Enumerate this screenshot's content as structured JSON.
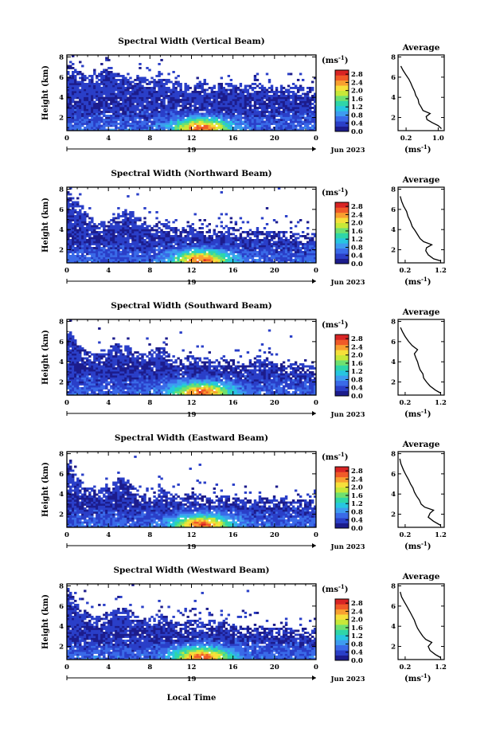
{
  "figure": {
    "x_axis_label": "Local Time",
    "day_label": "19",
    "date_label": "Jun 2023",
    "y_axis_label": "Height (km)",
    "colorbar_unit": "(ms",
    "colorbar_unit_exp": "-1",
    "colorbar_unit_close": ")",
    "avg_title": "Average",
    "avg_unit": "(ms",
    "avg_unit_exp": "-1",
    "avg_unit_close": ")",
    "colorbar_ticks": [
      "0.0",
      "0.4",
      "0.8",
      "1.2",
      "1.6",
      "2.0",
      "2.4",
      "2.8"
    ],
    "colorbar_range": [
      0,
      3.0
    ],
    "colormap": [
      "#1c1c8c",
      "#2a3fc8",
      "#3a6ae8",
      "#3e9cf0",
      "#27c6e0",
      "#2fd6a8",
      "#6fe070",
      "#c8e838",
      "#f6e03a",
      "#f8a030",
      "#f05a28",
      "#d82424"
    ]
  },
  "chart_data": [
    {
      "type": "heatmap",
      "title": "Spectral Width (Vertical Beam)",
      "beam": "vertical",
      "x_ticks": [
        "0",
        "4",
        "8",
        "12",
        "16",
        "20",
        "0"
      ],
      "xlim": [
        0,
        24
      ],
      "y_ticks": [
        "2",
        "4",
        "6",
        "8"
      ],
      "ylim": [
        0.7,
        8.2
      ],
      "seed": 11,
      "top_profile": [
        7.0,
        6.4,
        5.8,
        6.2,
        6.9,
        6.1,
        5.6,
        5.9,
        5.5,
        6.2,
        5.4,
        5.2,
        5.0,
        5.3,
        4.9,
        5.2,
        5.0,
        4.8,
        5.1,
        5.0,
        4.8,
        4.9,
        4.8,
        4.7,
        4.8
      ],
      "average": {
        "type": "line",
        "title": "Average",
        "x_ticks": [
          "0.2",
          "1.0"
        ],
        "xlim": [
          0.0,
          1.15
        ],
        "y_ticks": [
          "2",
          "4",
          "6",
          "8"
        ],
        "ylim": [
          0.7,
          8.2
        ],
        "profile": [
          [
            1.08,
            0.9
          ],
          [
            1.0,
            1.2
          ],
          [
            0.85,
            1.5
          ],
          [
            0.72,
            1.8
          ],
          [
            0.7,
            2.1
          ],
          [
            0.8,
            2.4
          ],
          [
            0.62,
            2.7
          ],
          [
            0.58,
            3.0
          ],
          [
            0.52,
            3.4
          ],
          [
            0.5,
            3.8
          ],
          [
            0.44,
            4.2
          ],
          [
            0.41,
            4.6
          ],
          [
            0.36,
            5.0
          ],
          [
            0.32,
            5.4
          ],
          [
            0.27,
            5.8
          ],
          [
            0.2,
            6.2
          ],
          [
            0.12,
            6.7
          ],
          [
            0.07,
            7.1
          ]
        ]
      }
    },
    {
      "type": "heatmap",
      "title": "Spectral Width (Northward Beam)",
      "beam": "northward",
      "x_ticks": [
        "0",
        "4",
        "8",
        "12",
        "16",
        "20",
        "0"
      ],
      "xlim": [
        0,
        24
      ],
      "y_ticks": [
        "2",
        "4",
        "6",
        "8"
      ],
      "ylim": [
        0.7,
        8.2
      ],
      "seed": 23,
      "top_profile": [
        7.6,
        6.5,
        5.2,
        4.4,
        4.6,
        5.4,
        5.8,
        4.8,
        4.2,
        4.5,
        4.0,
        3.8,
        4.3,
        4.0,
        3.6,
        4.2,
        3.9,
        3.5,
        3.7,
        3.6,
        3.5,
        3.6,
        3.4,
        3.5,
        3.4
      ],
      "average": {
        "type": "line",
        "title": "Average",
        "x_ticks": [
          "0.2",
          "1.2"
        ],
        "xlim": [
          0.0,
          1.3
        ],
        "y_ticks": [
          "2",
          "4",
          "6",
          "8"
        ],
        "ylim": [
          0.7,
          8.2
        ],
        "profile": [
          [
            1.2,
            0.9
          ],
          [
            1.0,
            1.1
          ],
          [
            0.85,
            1.5
          ],
          [
            0.78,
            1.9
          ],
          [
            0.8,
            2.2
          ],
          [
            0.95,
            2.5
          ],
          [
            0.72,
            2.8
          ],
          [
            0.62,
            3.1
          ],
          [
            0.55,
            3.5
          ],
          [
            0.48,
            3.9
          ],
          [
            0.4,
            4.3
          ],
          [
            0.35,
            4.8
          ],
          [
            0.28,
            5.3
          ],
          [
            0.24,
            5.8
          ],
          [
            0.16,
            6.3
          ],
          [
            0.1,
            6.8
          ],
          [
            0.06,
            7.3
          ]
        ]
      }
    },
    {
      "type": "heatmap",
      "title": "Spectral Width (Southward Beam)",
      "beam": "southward",
      "x_ticks": [
        "0",
        "4",
        "8",
        "12",
        "16",
        "20",
        "0"
      ],
      "xlim": [
        0,
        24
      ],
      "y_ticks": [
        "2",
        "4",
        "6",
        "8"
      ],
      "ylim": [
        0.7,
        8.2
      ],
      "seed": 37,
      "top_profile": [
        7.4,
        5.6,
        4.8,
        4.4,
        5.0,
        5.6,
        5.2,
        4.6,
        4.8,
        5.2,
        4.4,
        4.0,
        4.4,
        4.2,
        3.8,
        4.0,
        3.9,
        3.6,
        3.8,
        4.0,
        3.6,
        3.4,
        3.7,
        3.4,
        3.2
      ],
      "average": {
        "type": "line",
        "title": "Average",
        "x_ticks": [
          "0.2",
          "1.2"
        ],
        "xlim": [
          0.0,
          1.3
        ],
        "y_ticks": [
          "2",
          "4",
          "6",
          "8"
        ],
        "ylim": [
          0.7,
          8.2
        ],
        "profile": [
          [
            1.2,
            0.9
          ],
          [
            1.05,
            1.2
          ],
          [
            0.9,
            1.6
          ],
          [
            0.8,
            2.0
          ],
          [
            0.72,
            2.4
          ],
          [
            0.7,
            2.8
          ],
          [
            0.62,
            3.2
          ],
          [
            0.58,
            3.6
          ],
          [
            0.55,
            4.0
          ],
          [
            0.5,
            4.4
          ],
          [
            0.46,
            4.8
          ],
          [
            0.55,
            5.2
          ],
          [
            0.4,
            5.6
          ],
          [
            0.3,
            6.0
          ],
          [
            0.2,
            6.5
          ],
          [
            0.12,
            7.0
          ],
          [
            0.07,
            7.4
          ]
        ]
      }
    },
    {
      "type": "heatmap",
      "title": "Spectral Width (Eastward Beam)",
      "beam": "eastward",
      "x_ticks": [
        "0",
        "4",
        "8",
        "12",
        "16",
        "20",
        "0"
      ],
      "xlim": [
        0,
        24
      ],
      "y_ticks": [
        "2",
        "4",
        "6",
        "8"
      ],
      "ylim": [
        0.7,
        8.2
      ],
      "seed": 53,
      "top_profile": [
        7.2,
        5.4,
        4.4,
        4.2,
        4.6,
        5.4,
        5.0,
        3.9,
        3.8,
        4.2,
        3.8,
        3.6,
        3.9,
        3.7,
        3.4,
        3.6,
        3.4,
        3.2,
        3.6,
        3.4,
        3.2,
        3.3,
        3.1,
        3.2,
        3.0
      ],
      "average": {
        "type": "line",
        "title": "Average",
        "x_ticks": [
          "0.2",
          "1.2"
        ],
        "xlim": [
          0.0,
          1.3
        ],
        "y_ticks": [
          "2",
          "4",
          "6",
          "8"
        ],
        "ylim": [
          0.7,
          8.2
        ],
        "profile": [
          [
            1.2,
            0.9
          ],
          [
            1.0,
            1.3
          ],
          [
            0.85,
            1.7
          ],
          [
            0.9,
            2.1
          ],
          [
            1.0,
            2.4
          ],
          [
            0.75,
            2.7
          ],
          [
            0.65,
            3.0
          ],
          [
            0.6,
            3.4
          ],
          [
            0.52,
            3.8
          ],
          [
            0.46,
            4.2
          ],
          [
            0.42,
            4.6
          ],
          [
            0.35,
            5.0
          ],
          [
            0.3,
            5.4
          ],
          [
            0.22,
            5.9
          ],
          [
            0.15,
            6.4
          ],
          [
            0.08,
            7.0
          ],
          [
            0.05,
            7.5
          ]
        ]
      }
    },
    {
      "type": "heatmap",
      "title": "Spectral Width (Westward Beam)",
      "beam": "westward",
      "x_ticks": [
        "0",
        "4",
        "8",
        "12",
        "16",
        "20",
        "0"
      ],
      "xlim": [
        0,
        24
      ],
      "y_ticks": [
        "2",
        "4",
        "6",
        "8"
      ],
      "ylim": [
        0.7,
        8.2
      ],
      "seed": 71,
      "top_profile": [
        7.6,
        6.0,
        5.0,
        4.6,
        5.2,
        5.6,
        5.4,
        4.6,
        4.6,
        5.0,
        4.4,
        4.0,
        4.4,
        4.2,
        3.8,
        4.2,
        3.9,
        3.6,
        3.8,
        3.7,
        3.5,
        3.6,
        3.4,
        3.5,
        3.3
      ],
      "average": {
        "type": "line",
        "title": "Average",
        "x_ticks": [
          "0.2",
          "1.2"
        ],
        "xlim": [
          0.0,
          1.3
        ],
        "y_ticks": [
          "2",
          "4",
          "6",
          "8"
        ],
        "ylim": [
          0.7,
          8.2
        ],
        "profile": [
          [
            1.2,
            0.9
          ],
          [
            1.05,
            1.2
          ],
          [
            0.9,
            1.6
          ],
          [
            0.85,
            2.0
          ],
          [
            0.95,
            2.4
          ],
          [
            0.78,
            2.7
          ],
          [
            0.7,
            3.0
          ],
          [
            0.62,
            3.4
          ],
          [
            0.55,
            3.8
          ],
          [
            0.5,
            4.2
          ],
          [
            0.46,
            4.6
          ],
          [
            0.4,
            5.0
          ],
          [
            0.34,
            5.4
          ],
          [
            0.26,
            5.9
          ],
          [
            0.18,
            6.4
          ],
          [
            0.1,
            6.9
          ],
          [
            0.06,
            7.4
          ]
        ]
      }
    }
  ]
}
